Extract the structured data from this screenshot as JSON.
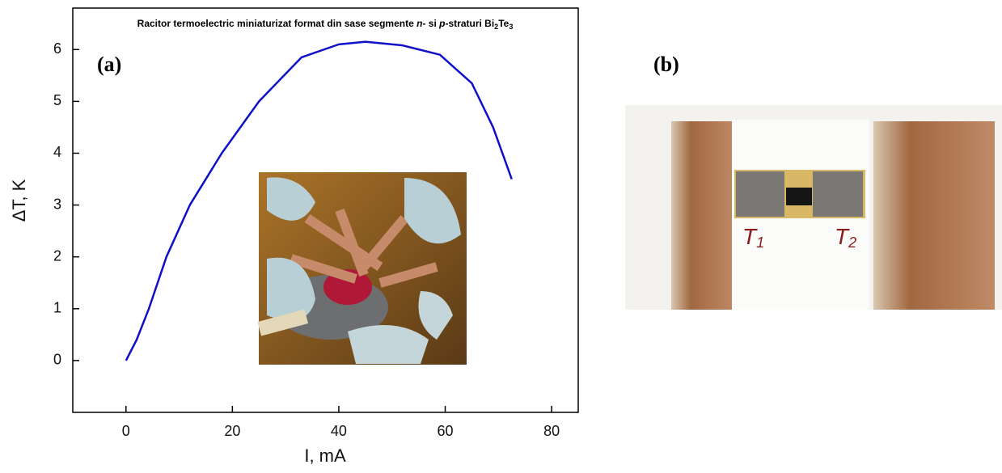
{
  "chart_data": {
    "type": "line",
    "title": [
      "Racitor termoelectric miniaturizat format din sase segmente ",
      "n",
      "- si ",
      "p",
      "-straturi Bi",
      "2",
      "Te",
      "3"
    ],
    "panel_label": "(a)",
    "x_label": "I, mA",
    "y_label": "ΔT, K",
    "x": [
      0,
      2,
      4.3,
      7.6,
      12,
      18,
      25,
      33,
      40,
      45,
      52,
      59,
      65,
      69,
      72.5
    ],
    "series": [
      {
        "color": "#1010c8",
        "values": [
          0,
          0.4,
          1,
          2,
          3,
          4,
          5,
          5.85,
          6.1,
          6.15,
          6.08,
          5.9,
          5.35,
          4.5,
          3.5
        ]
      }
    ],
    "xlim": [
      -10,
      85
    ],
    "ylim": [
      -1,
      6.8
    ],
    "xticks": [
      0,
      20,
      40,
      60,
      80
    ],
    "yticks": [
      0,
      1,
      2,
      3,
      4,
      5,
      6
    ]
  },
  "photo_b": {
    "panel_label": "(b)",
    "labels": [
      [
        "T",
        "1"
      ],
      [
        "T",
        "2"
      ]
    ]
  }
}
